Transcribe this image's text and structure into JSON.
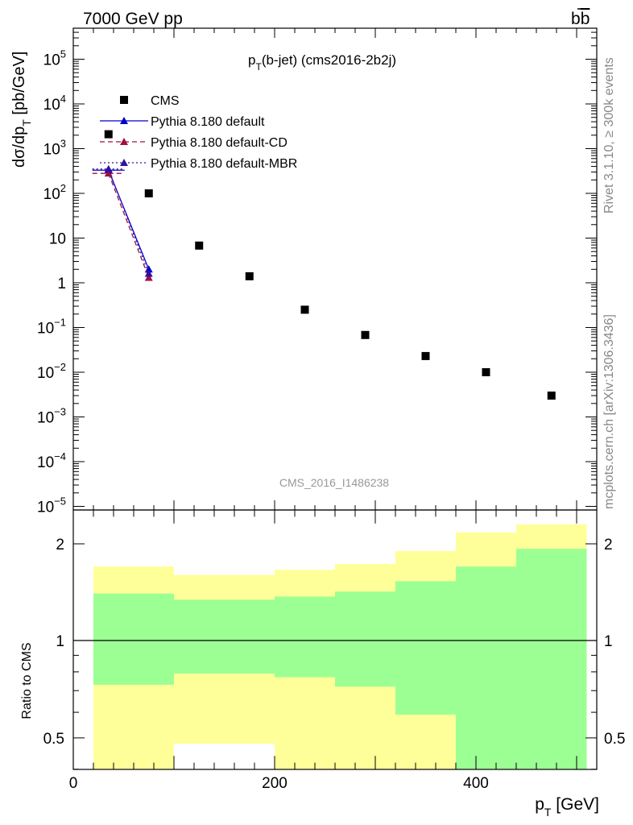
{
  "header": {
    "left": "7000 GeV pp",
    "right_main": "b",
    "right_bar": "b"
  },
  "side_labels": {
    "rivet": "Rivet 3.1.10, ≥ 300k events",
    "mcplots": "mcplots.cern.ch [arXiv:1306.3436]"
  },
  "watermark": "CMS_2016_I1486238",
  "colors": {
    "data": "#000000",
    "default": "#0000cc",
    "cd": "#a01040",
    "mbr": "#3010a0",
    "band_inner": "#9cff94",
    "band_outer": "#ffff99"
  },
  "chart_data": [
    {
      "type": "scatter",
      "title_main": "p",
      "title_sub": "T",
      "title_rest": "(b-jet) (cms2016-2b2j)",
      "ylabel_main": "dσ/dp",
      "ylabel_sub": "T",
      "ylabel_rest": " [pb/GeV]",
      "yscale": "log",
      "xlim": [
        0,
        520
      ],
      "ylim": [
        1e-05,
        500000
      ],
      "y_ticks": [
        {
          "main": "10",
          "exp": "5"
        },
        {
          "main": "10",
          "exp": "4"
        },
        {
          "main": "10",
          "exp": "3"
        },
        {
          "main": "10",
          "exp": "2"
        },
        {
          "main": "10",
          "exp": ""
        },
        {
          "main": "1",
          "exp": ""
        },
        {
          "main": "10",
          "exp": "−1"
        },
        {
          "main": "10",
          "exp": "−2"
        },
        {
          "main": "10",
          "exp": "−3"
        },
        {
          "main": "10",
          "exp": "−4"
        },
        {
          "main": "10",
          "exp": "−5"
        }
      ],
      "legend_position": "top-left",
      "series": [
        {
          "name": "CMS",
          "marker": "square",
          "x": [
            35,
            75,
            125,
            175,
            230,
            290,
            350,
            410,
            475
          ],
          "y": [
            2100,
            100,
            6.8,
            1.4,
            0.25,
            0.068,
            0.023,
            0.01,
            0.003
          ]
        },
        {
          "name": "Pythia 8.180 default",
          "marker": "triangle",
          "line": "solid",
          "x": [
            35,
            75
          ],
          "y": [
            330,
            2.0
          ]
        },
        {
          "name": "Pythia 8.180 default-CD",
          "marker": "triangle",
          "line": "dashed",
          "x": [
            35,
            75
          ],
          "y": [
            280,
            1.3
          ]
        },
        {
          "name": "Pythia 8.180 default-MBR",
          "marker": "triangle",
          "line": "dotted",
          "x": [
            35,
            75
          ],
          "y": [
            350,
            1.6
          ]
        }
      ]
    },
    {
      "type": "area",
      "ylabel": "Ratio to CMS",
      "xlabel_main": "p",
      "xlabel_sub": "T",
      "xlabel_rest": " [GeV]",
      "xlim": [
        0,
        520
      ],
      "ylim": [
        0.34,
        2.3
      ],
      "x_ticks": [
        "0",
        "200",
        "400"
      ],
      "y_ticks": [
        "0.5",
        "1",
        "2"
      ],
      "reference_line": 1,
      "bins": [
        {
          "x_low": 20,
          "x_high": 100,
          "inner_low": 0.73,
          "inner_high": 1.4,
          "outer_low": 0.34,
          "outer_high": 1.7
        },
        {
          "x_low": 100,
          "x_high": 200,
          "inner_low": 0.79,
          "inner_high": 1.34,
          "outer_low": 0.48,
          "outer_high": 1.6
        },
        {
          "x_low": 200,
          "x_high": 260,
          "inner_low": 0.77,
          "inner_high": 1.37,
          "outer_low": 0.37,
          "outer_high": 1.66
        },
        {
          "x_low": 260,
          "x_high": 320,
          "inner_low": 0.72,
          "inner_high": 1.42,
          "outer_low": 0.34,
          "outer_high": 1.73
        },
        {
          "x_low": 320,
          "x_high": 380,
          "inner_low": 0.59,
          "inner_high": 1.53,
          "outer_low": 0.34,
          "outer_high": 1.9
        },
        {
          "x_low": 380,
          "x_high": 440,
          "inner_low": 0.34,
          "inner_high": 1.7,
          "outer_low": 0.34,
          "outer_high": 2.17
        },
        {
          "x_low": 440,
          "x_high": 510,
          "inner_low": 0.34,
          "inner_high": 1.93,
          "outer_low": 0.34,
          "outer_high": 2.3
        }
      ]
    }
  ]
}
